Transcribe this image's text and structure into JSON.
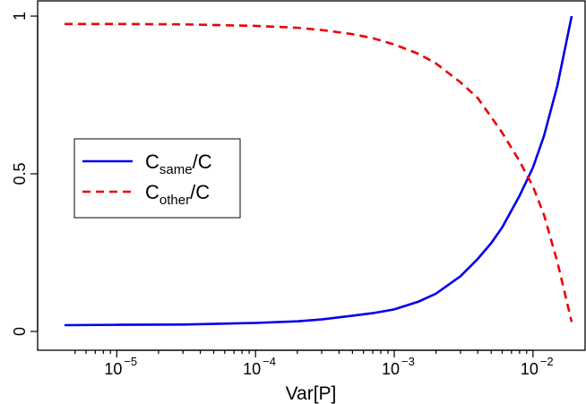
{
  "chart_data": {
    "type": "line",
    "xlabel": "Var[P]",
    "ylabel": "",
    "x_scale": "log10",
    "xlim": [
      4.2e-06,
      0.019
    ],
    "ylim": [
      0,
      1
    ],
    "x_ticks": [
      {
        "value": 1e-05,
        "base": "10",
        "exp": "−5"
      },
      {
        "value": 0.0001,
        "base": "10",
        "exp": "−4"
      },
      {
        "value": 0.001,
        "base": "10",
        "exp": "−3"
      },
      {
        "value": 0.01,
        "base": "10",
        "exp": "−2"
      }
    ],
    "y_ticks": [
      {
        "value": 0,
        "label": "0"
      },
      {
        "value": 0.5,
        "label": "0.5"
      },
      {
        "value": 1,
        "label": "1"
      }
    ],
    "legend_position": "middle-left",
    "series": [
      {
        "name": "C_same/C",
        "label_main": "C",
        "label_sub": "same",
        "label_tail": "/C",
        "color": "#0000ee",
        "dash": "solid",
        "x": [
          4.2e-06,
          1e-05,
          3e-05,
          0.0001,
          0.0002,
          0.0003,
          0.0005,
          0.0007,
          0.001,
          0.0015,
          0.002,
          0.003,
          0.004,
          0.005,
          0.006,
          0.008,
          0.01,
          0.012,
          0.015,
          0.019
        ],
        "y": [
          0.02,
          0.021,
          0.022,
          0.027,
          0.032,
          0.038,
          0.05,
          0.058,
          0.07,
          0.095,
          0.12,
          0.175,
          0.23,
          0.28,
          0.33,
          0.43,
          0.52,
          0.62,
          0.78,
          1.0
        ]
      },
      {
        "name": "C_other/C",
        "label_main": "C",
        "label_sub": "other",
        "label_tail": "/C",
        "color": "#ee0000",
        "dash": "dashed",
        "x": [
          4.2e-06,
          1e-05,
          3e-05,
          0.0001,
          0.0002,
          0.0003,
          0.0005,
          0.0007,
          0.001,
          0.0015,
          0.002,
          0.003,
          0.004,
          0.005,
          0.006,
          0.008,
          0.01,
          0.012,
          0.015,
          0.019
        ],
        "y": [
          0.975,
          0.975,
          0.974,
          0.969,
          0.963,
          0.956,
          0.943,
          0.93,
          0.91,
          0.88,
          0.85,
          0.79,
          0.74,
          0.68,
          0.63,
          0.54,
          0.46,
          0.37,
          0.22,
          0.03
        ]
      }
    ]
  }
}
